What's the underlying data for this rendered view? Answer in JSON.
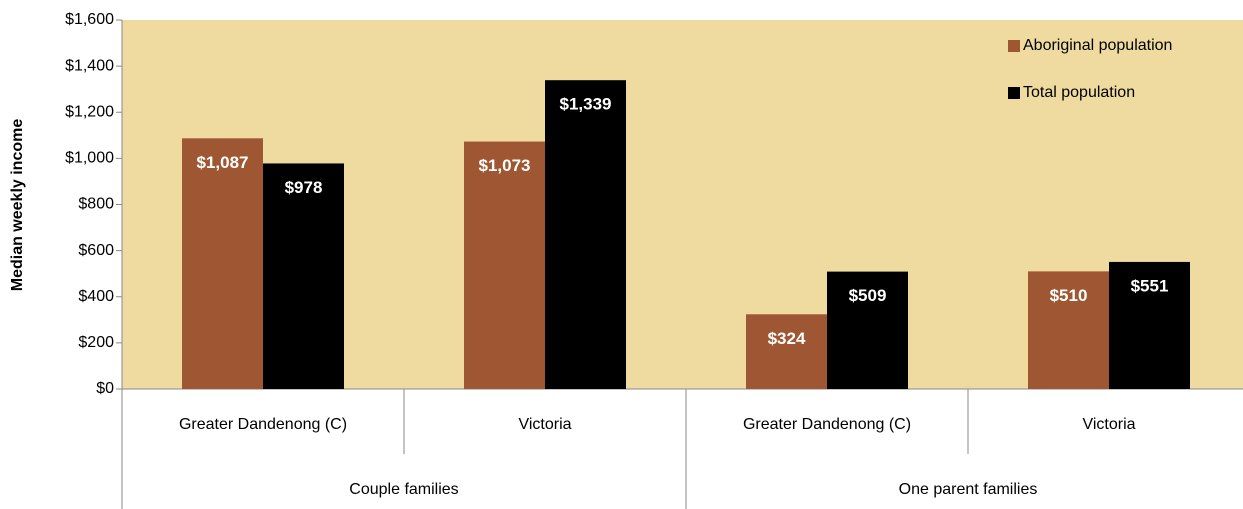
{
  "chart_data": {
    "type": "bar",
    "y_label": "Median weekly income",
    "category_groups": [
      {
        "name": "Couple families",
        "categories": [
          "Greater Dandenong (C)",
          "Victoria"
        ]
      },
      {
        "name": "One parent families",
        "categories": [
          "Greater Dandenong (C)",
          "Victoria"
        ]
      }
    ],
    "series": [
      {
        "name": "Aboriginal population",
        "color": "#9e5732",
        "values": [
          1087,
          1073,
          324,
          510
        ],
        "value_labels": [
          "$1,087",
          "$1,073",
          "$324",
          "$510"
        ]
      },
      {
        "name": "Total population",
        "color": "#000000",
        "values": [
          978,
          1339,
          509,
          551
        ],
        "value_labels": [
          "$978",
          "$1,339",
          "$509",
          "$551"
        ]
      }
    ],
    "ylim": [
      0,
      1600
    ],
    "yticks": [
      {
        "value": 0,
        "label": "$0"
      },
      {
        "value": 200,
        "label": "$200"
      },
      {
        "value": 400,
        "label": "$400"
      },
      {
        "value": 600,
        "label": "$600"
      },
      {
        "value": 800,
        "label": "$800"
      },
      {
        "value": 1000,
        "label": "$1,000"
      },
      {
        "value": 1200,
        "label": "$1,200"
      },
      {
        "value": 1400,
        "label": "$1,400"
      },
      {
        "value": 1600,
        "label": "$1,600"
      }
    ],
    "legend": "top-right",
    "plot_background": "#efdba0"
  }
}
